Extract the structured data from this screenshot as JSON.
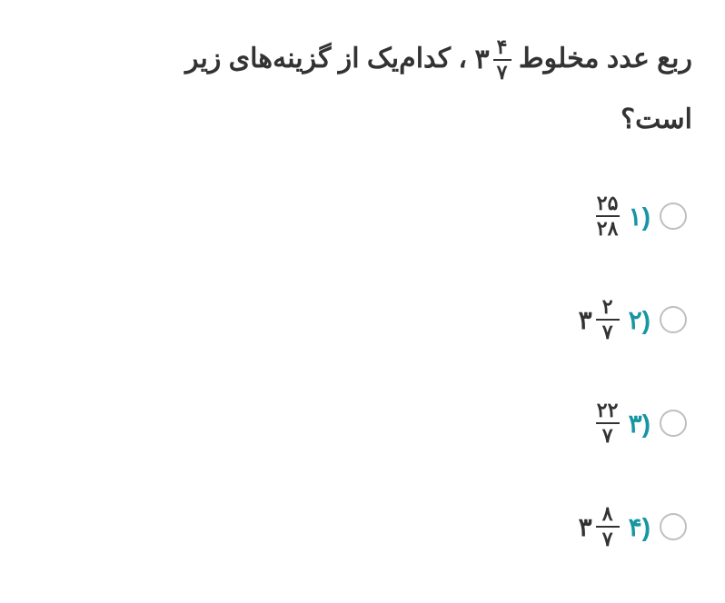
{
  "question": {
    "part1": "ربع عدد مخلوط ",
    "mixed": {
      "whole": "۳",
      "num": "۴",
      "den": "۷"
    },
    "part2": "، کدام‌یک از گزینه‌های زیر",
    "part3": "است؟"
  },
  "option_number_color": "#1695a3",
  "radio_border_color": "#bfbfbf",
  "text_color": "#333333",
  "options": [
    {
      "n": "۱)",
      "whole": "",
      "num": "۲۵",
      "den": "۲۸"
    },
    {
      "n": "۲)",
      "whole": "۳",
      "num": "۲",
      "den": "۷"
    },
    {
      "n": "۳)",
      "whole": "",
      "num": "۲۲",
      "den": "۷"
    },
    {
      "n": "۴)",
      "whole": "۳",
      "num": "۸",
      "den": "۷"
    }
  ]
}
